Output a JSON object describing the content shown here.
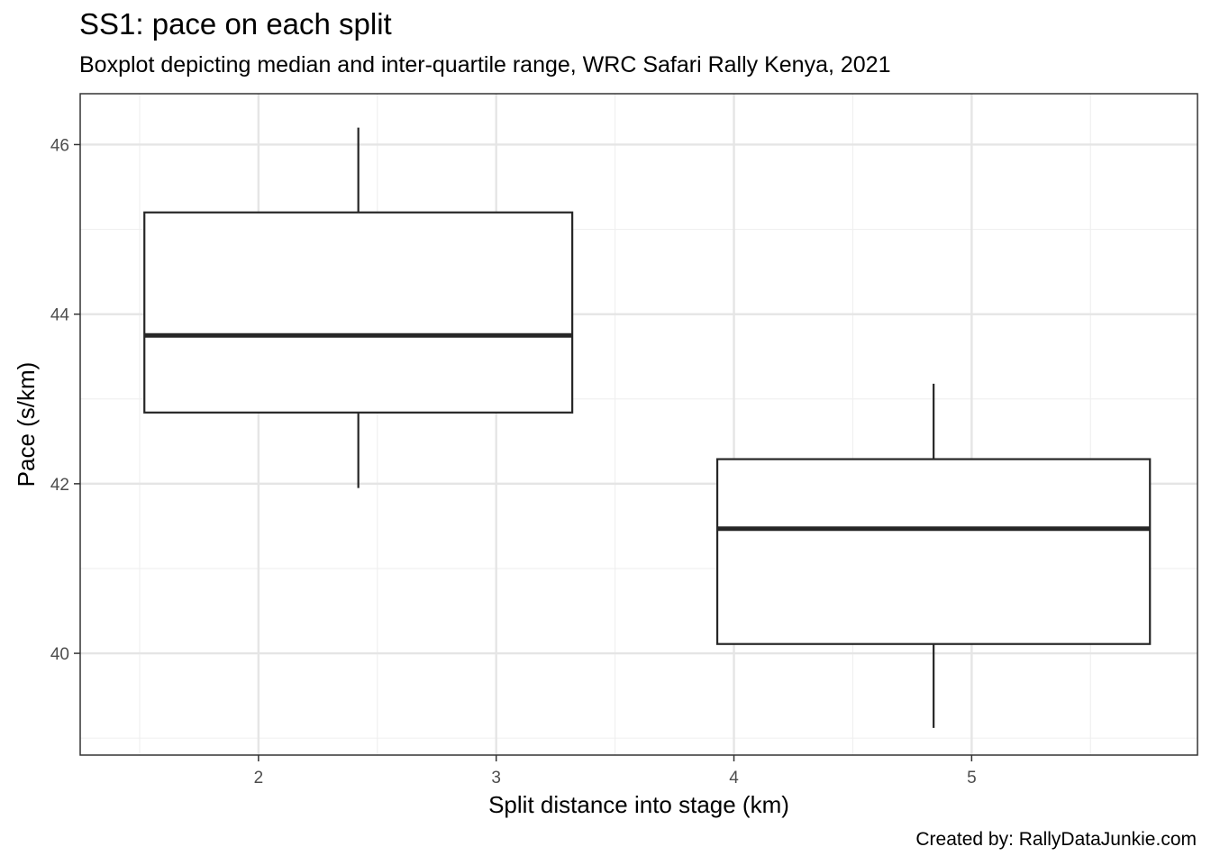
{
  "chart_data": {
    "type": "boxplot",
    "title": "SS1: pace on each split",
    "subtitle": "Boxplot depicting median and inter-quartile range, WRC Safari Rally Kenya, 2021",
    "caption": "Created by: RallyDataJunkie.com",
    "xlabel": "Split distance into stage (km)",
    "ylabel": "Pace (s/km)",
    "xlim": [
      1.25,
      5.95
    ],
    "ylim": [
      38.8,
      46.6
    ],
    "x_ticks": [
      2,
      3,
      4,
      5
    ],
    "y_ticks": [
      40,
      42,
      44,
      46
    ],
    "grid": true,
    "boxes": [
      {
        "x": 2.42,
        "x_from": 1.52,
        "x_to": 3.32,
        "whisker_low": 41.95,
        "q1": 42.84,
        "median": 43.75,
        "q3": 45.2,
        "whisker_high": 46.2
      },
      {
        "x": 4.84,
        "x_from": 3.93,
        "x_to": 5.75,
        "whisker_low": 39.12,
        "q1": 40.11,
        "median": 41.47,
        "q3": 42.29,
        "whisker_high": 43.18
      }
    ],
    "colors": {
      "panel_border": "#333333",
      "grid_major": "#e5e5e5",
      "grid_minor": "#f0f0f0",
      "box_line": "#262626"
    }
  }
}
